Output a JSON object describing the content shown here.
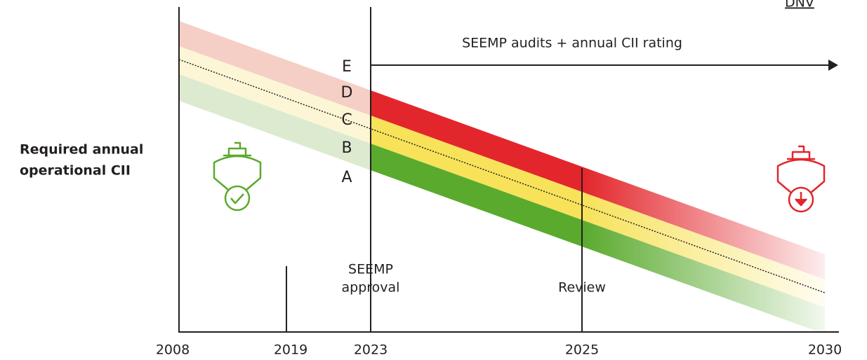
{
  "source_link": "DNV",
  "y_axis_label": [
    "Required annual",
    "operational CII"
  ],
  "years": [
    "2008",
    "2019",
    "2023",
    "2025",
    "2030"
  ],
  "ratings": [
    "E",
    "D",
    "C",
    "B",
    "A"
  ],
  "annotations": {
    "audits": "SEEMP audits + annual CII rating",
    "approval": [
      "SEEMP",
      "approval"
    ],
    "review": "Review"
  }
}
